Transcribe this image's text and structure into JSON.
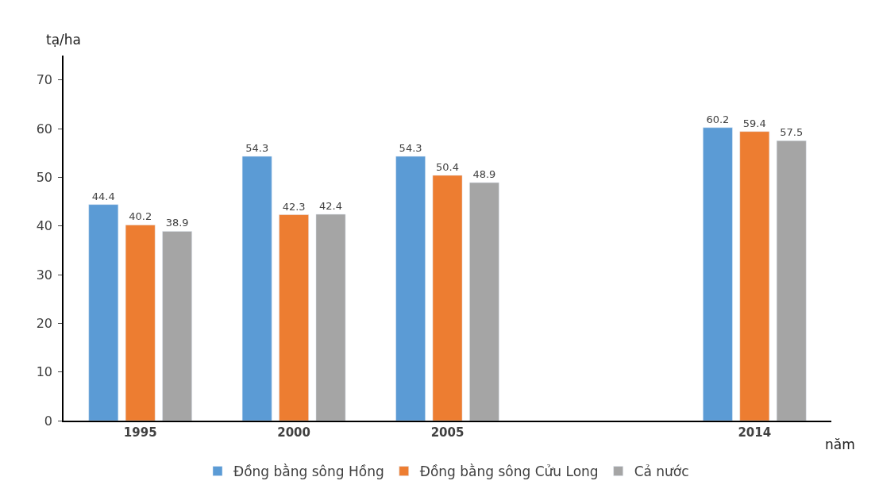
{
  "chart_data": {
    "type": "bar",
    "xlabel": "năm",
    "ylabel": "tạ/ha",
    "categories": [
      "1995",
      "2000",
      "2005",
      null,
      "2014"
    ],
    "series": [
      {
        "name": "Đồng bằng sông Hồng",
        "color": "#5b9bd5",
        "values": [
          44.4,
          54.3,
          54.3,
          null,
          60.2
        ]
      },
      {
        "name": "Đồng bằng sông Cửu Long",
        "color": "#ed7d31",
        "values": [
          40.2,
          42.3,
          50.4,
          null,
          59.4
        ]
      },
      {
        "name": "Cả nước",
        "color": "#a5a5a5",
        "values": [
          38.9,
          42.4,
          48.9,
          null,
          57.5
        ]
      }
    ],
    "ylim": [
      0,
      75
    ],
    "yticks": [
      0,
      10,
      20,
      30,
      40,
      50,
      60,
      70
    ],
    "legend": "bottom",
    "data_labels": true
  }
}
